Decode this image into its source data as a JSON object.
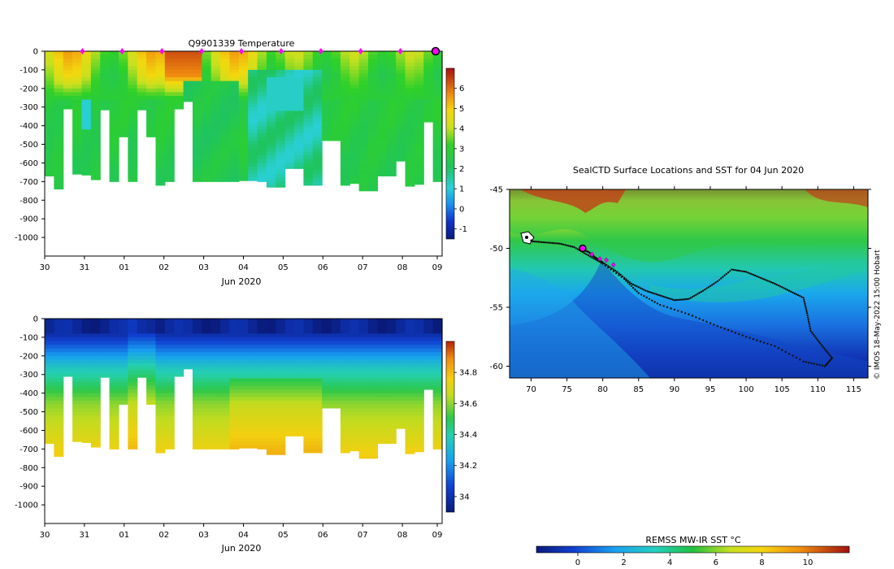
{
  "chart_data": [
    {
      "type": "heatmap",
      "title": "Q9901339  Temperature",
      "xlabel": "Jun 2020",
      "x_tick_labels": [
        "30",
        "31",
        "01",
        "02",
        "03",
        "04",
        "05",
        "06",
        "07",
        "08",
        "09"
      ],
      "y_tick_labels": [
        "0",
        "-100",
        "-200",
        "-300",
        "-400",
        "-500",
        "-600",
        "-700",
        "-800",
        "-900",
        "-1000"
      ],
      "ylim": [
        -1100,
        0
      ],
      "colorbar_ticks": [
        "-1",
        "0",
        "1",
        "2",
        "3",
        "4",
        "5",
        "6"
      ],
      "colorbar_range": [
        -1.5,
        7
      ],
      "profile_max_depths": [
        670,
        740,
        310,
        660,
        665,
        690,
        315,
        700,
        460,
        700,
        315,
        460,
        720,
        700,
        310,
        270,
        700,
        700,
        700,
        700,
        700,
        695,
        695,
        700,
        730,
        730,
        630,
        630,
        720,
        720,
        480,
        480,
        720,
        710,
        750,
        750,
        670,
        670,
        590,
        725,
        715,
        380,
        700
      ],
      "surface_markers_day": [
        31,
        1,
        2,
        3,
        4,
        5,
        6,
        7,
        8
      ],
      "last_marker_label": "09"
    },
    {
      "type": "heatmap",
      "title": "",
      "xlabel": "Jun 2020",
      "x_tick_labels": [
        "30",
        "31",
        "01",
        "02",
        "03",
        "04",
        "05",
        "06",
        "07",
        "08",
        "09"
      ],
      "y_tick_labels": [
        "0",
        "-100",
        "-200",
        "-300",
        "-400",
        "-500",
        "-600",
        "-700",
        "-800",
        "-900",
        "-1000"
      ],
      "ylim": [
        -1100,
        0
      ],
      "colorbar_ticks": [
        "34",
        "34.2",
        "34.4",
        "34.6",
        "34.8"
      ],
      "colorbar_range": [
        33.9,
        35.0
      ]
    },
    {
      "type": "heatmap",
      "title": "SealCTD Surface Locations and SST for 04 Jun 2020",
      "xlabel": "",
      "x_tick_labels": [
        "70",
        "75",
        "80",
        "85",
        "90",
        "95",
        "100",
        "105",
        "110",
        "115"
      ],
      "y_tick_labels": [
        "-45",
        "-50",
        "-55",
        "-60"
      ],
      "xlim": [
        67,
        117
      ],
      "ylim": [
        -61,
        -45
      ],
      "colorbar_title": "REMSS MW-IR SST °C",
      "colorbar_ticks": [
        "0",
        "2",
        "4",
        "6",
        "8",
        "10"
      ],
      "colorbar_range": [
        -1.8,
        11.8
      ],
      "credit": "© IMOS 18-May-2022 15:00 Hobart",
      "track": [
        [
          77,
          -50.1
        ],
        [
          78,
          -50.3
        ],
        [
          79,
          -50.8
        ],
        [
          80,
          -51.2
        ],
        [
          82,
          -52.0
        ],
        [
          84,
          -53.0
        ],
        [
          86,
          -53.6
        ],
        [
          88,
          -54.0
        ],
        [
          90,
          -54.4
        ],
        [
          92,
          -54.3
        ],
        [
          94,
          -53.6
        ],
        [
          96,
          -52.8
        ],
        [
          98,
          -51.8
        ],
        [
          100,
          -52.0
        ],
        [
          102,
          -52.5
        ],
        [
          104,
          -53.0
        ],
        [
          106,
          -53.6
        ],
        [
          108,
          -54.2
        ],
        [
          108.5,
          -55.5
        ],
        [
          109,
          -57.0
        ],
        [
          110.5,
          -58.2
        ],
        [
          112,
          -59.3
        ],
        [
          111,
          -60.0
        ],
        [
          108,
          -59.6
        ],
        [
          104,
          -58.3
        ],
        [
          100,
          -57.5
        ],
        [
          96,
          -56.6
        ],
        [
          92,
          -55.6
        ],
        [
          88,
          -54.8
        ],
        [
          85,
          -53.8
        ],
        [
          83,
          -52.6
        ],
        [
          80,
          -51.3
        ],
        [
          78,
          -50.6
        ],
        [
          76,
          -49.9
        ],
        [
          74,
          -49.6
        ],
        [
          72,
          -49.5
        ],
        [
          70,
          -49.4
        ]
      ],
      "recent_track": [
        [
          77.2,
          -50.0
        ],
        [
          78.5,
          -50.5
        ],
        [
          79.6,
          -50.9
        ],
        [
          80.5,
          -51.0
        ],
        [
          81.5,
          -51.4
        ]
      ]
    }
  ]
}
